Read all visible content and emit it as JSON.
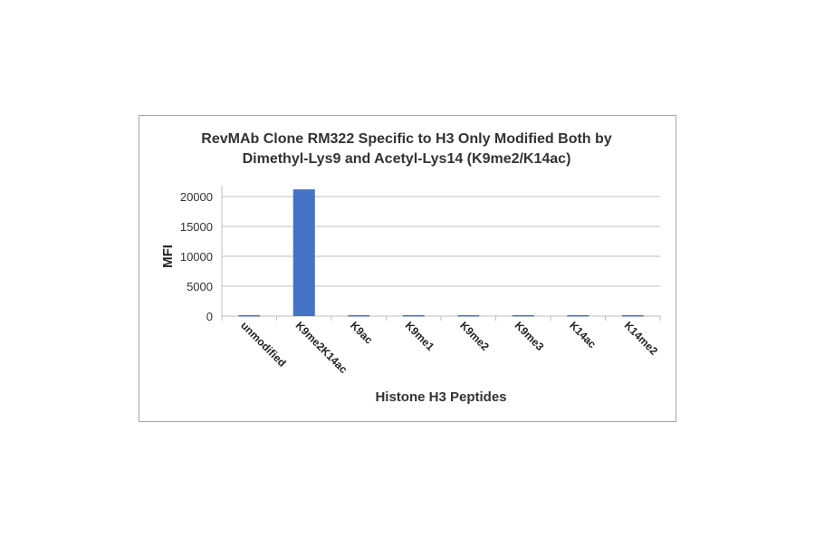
{
  "chart_data": {
    "type": "bar",
    "title": "RevMAb Clone RM322 Specific to H3 Only Modified Both by Dimethyl-Lys9 and Acetyl-Lys14 (K9me2/K14ac)",
    "title_lines": [
      "RevMAb Clone RM322 Specific to H3 Only Modified Both by",
      "Dimethyl-Lys9 and Acetyl-Lys14 (K9me2/K14ac)"
    ],
    "xlabel": "Histone H3 Peptides",
    "ylabel": "MFI",
    "categories": [
      "unmodified",
      "K9me2K14ac",
      "K9ac",
      "K9me1",
      "K9me2",
      "K9me3",
      "K14ac",
      "K14me2"
    ],
    "values": [
      150,
      21200,
      150,
      150,
      150,
      150,
      150,
      150
    ],
    "ylim": [
      0,
      20000
    ],
    "yticks": [
      "0",
      "5000",
      "10000",
      "15000",
      "20000"
    ],
    "grid": true,
    "legend": "none",
    "bar_color": "#4472c4"
  }
}
